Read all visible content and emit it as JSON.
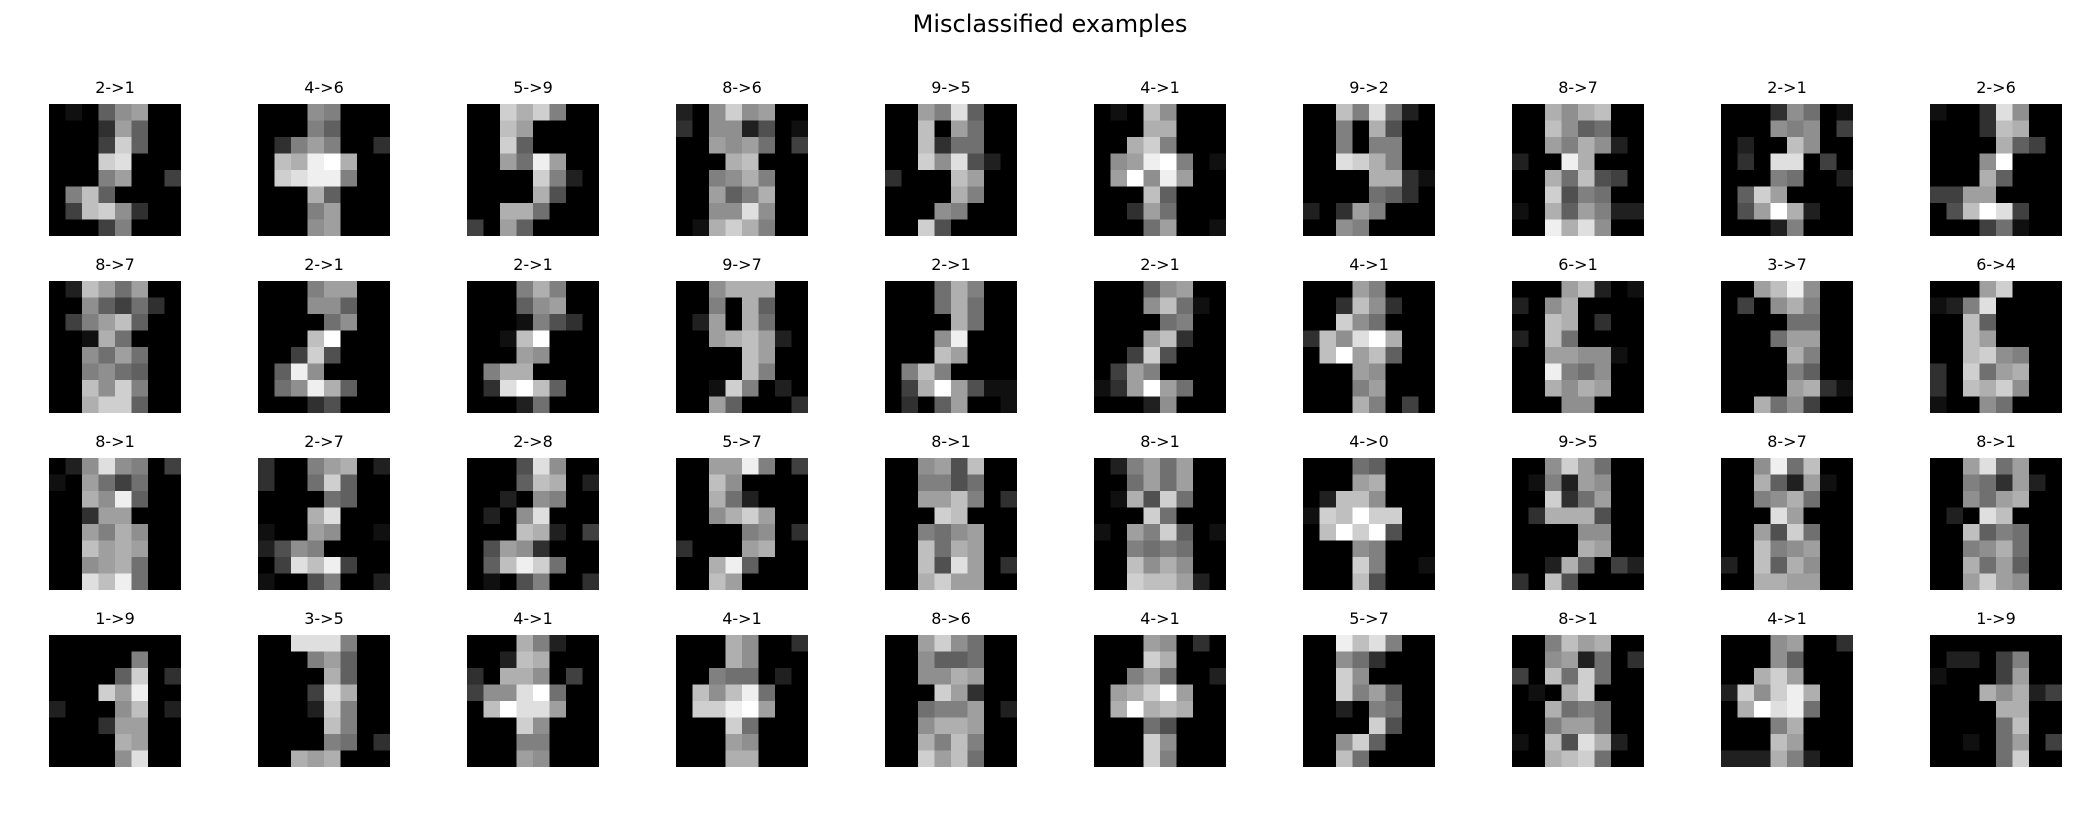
{
  "chart_data": {
    "type": "image_grid",
    "title": "Misclassified examples",
    "rows": 4,
    "cols": 10,
    "label_format": "true->predicted",
    "colormap": "gray",
    "panels": [
      {
        "label": "2->1",
        "true": 2,
        "pred": 1
      },
      {
        "label": "4->6",
        "true": 4,
        "pred": 6
      },
      {
        "label": "5->9",
        "true": 5,
        "pred": 9
      },
      {
        "label": "8->6",
        "true": 8,
        "pred": 6
      },
      {
        "label": "9->5",
        "true": 9,
        "pred": 5
      },
      {
        "label": "4->1",
        "true": 4,
        "pred": 1
      },
      {
        "label": "9->2",
        "true": 9,
        "pred": 2
      },
      {
        "label": "8->7",
        "true": 8,
        "pred": 7
      },
      {
        "label": "2->1",
        "true": 2,
        "pred": 1
      },
      {
        "label": "2->6",
        "true": 2,
        "pred": 6
      },
      {
        "label": "8->7",
        "true": 8,
        "pred": 7
      },
      {
        "label": "2->1",
        "true": 2,
        "pred": 1
      },
      {
        "label": "2->1",
        "true": 2,
        "pred": 1
      },
      {
        "label": "9->7",
        "true": 9,
        "pred": 7
      },
      {
        "label": "2->1",
        "true": 2,
        "pred": 1
      },
      {
        "label": "2->1",
        "true": 2,
        "pred": 1
      },
      {
        "label": "4->1",
        "true": 4,
        "pred": 1
      },
      {
        "label": "6->1",
        "true": 6,
        "pred": 1
      },
      {
        "label": "3->7",
        "true": 3,
        "pred": 7
      },
      {
        "label": "6->4",
        "true": 6,
        "pred": 4
      },
      {
        "label": "8->1",
        "true": 8,
        "pred": 1
      },
      {
        "label": "2->7",
        "true": 2,
        "pred": 7
      },
      {
        "label": "2->8",
        "true": 2,
        "pred": 8
      },
      {
        "label": "5->7",
        "true": 5,
        "pred": 7
      },
      {
        "label": "8->1",
        "true": 8,
        "pred": 1
      },
      {
        "label": "8->1",
        "true": 8,
        "pred": 1
      },
      {
        "label": "4->0",
        "true": 4,
        "pred": 0
      },
      {
        "label": "9->5",
        "true": 9,
        "pred": 5
      },
      {
        "label": "8->7",
        "true": 8,
        "pred": 7
      },
      {
        "label": "8->1",
        "true": 8,
        "pred": 1
      },
      {
        "label": "1->9",
        "true": 1,
        "pred": 9
      },
      {
        "label": "3->5",
        "true": 3,
        "pred": 5
      },
      {
        "label": "4->1",
        "true": 4,
        "pred": 1
      },
      {
        "label": "4->1",
        "true": 4,
        "pred": 1
      },
      {
        "label": "8->6",
        "true": 8,
        "pred": 6
      },
      {
        "label": "4->1",
        "true": 4,
        "pred": 1
      },
      {
        "label": "5->7",
        "true": 5,
        "pred": 7
      },
      {
        "label": "8->1",
        "true": 8,
        "pred": 1
      },
      {
        "label": "4->1",
        "true": 4,
        "pred": 1
      },
      {
        "label": "1->9",
        "true": 1,
        "pred": 9
      }
    ]
  }
}
